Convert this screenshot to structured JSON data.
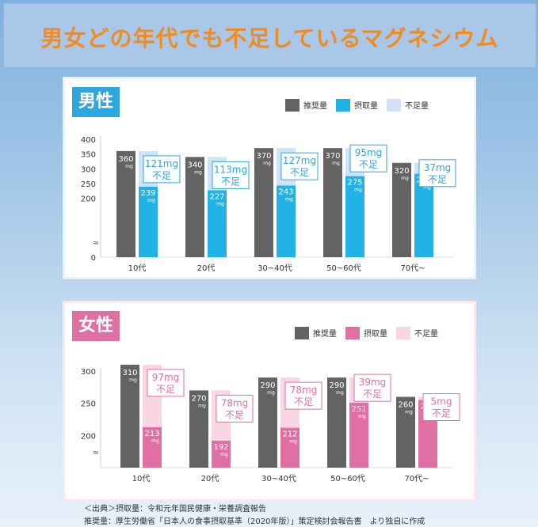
{
  "page_title": "男女どの年代でも不足しているマグネシウム",
  "colors": {
    "title_text": "#f08b1f",
    "recommended": "#636363",
    "men_intake": "#22b3e6",
    "men_shortage": "#cfe3f6",
    "men_accent": "#2ea6de",
    "women_intake": "#e06fa3",
    "women_shortage": "#f9d6e4",
    "women_accent": "#e06fa3"
  },
  "chart_data": [
    {
      "type": "bar",
      "title": "男性",
      "categories": [
        "10代",
        "20代",
        "30~40代",
        "50~60代",
        "70代~"
      ],
      "legend": [
        "推奨量",
        "摂取量",
        "不足量"
      ],
      "ylim": [
        0,
        400
      ],
      "yticks": [
        "400",
        "350",
        "300",
        "250",
        "200",
        "0"
      ],
      "axis_break": "≈",
      "unit": "mg",
      "series": [
        {
          "name": "推奨量",
          "values": [
            360,
            340,
            370,
            370,
            320
          ]
        },
        {
          "name": "摂取量",
          "values": [
            239,
            227,
            243,
            275,
            283
          ]
        },
        {
          "name": "不足量",
          "values": [
            121,
            113,
            127,
            95,
            37
          ]
        }
      ],
      "shortage_labels": [
        "121mg\n不足",
        "113mg\n不足",
        "127mg\n不足",
        "95mg\n不足",
        "37mg\n不足"
      ]
    },
    {
      "type": "bar",
      "title": "女性",
      "categories": [
        "10代",
        "20代",
        "30~40代",
        "50~60代",
        "70代~"
      ],
      "legend": [
        "推奨量",
        "摂取量",
        "不足量"
      ],
      "ylim": [
        150,
        300
      ],
      "yticks": [
        "300",
        "250",
        "200"
      ],
      "axis_break": "≈",
      "unit": "mg",
      "series": [
        {
          "name": "推奨量",
          "values": [
            310,
            270,
            290,
            290,
            260
          ]
        },
        {
          "name": "摂取量",
          "values": [
            213,
            192,
            212,
            251,
            255
          ]
        },
        {
          "name": "不足量",
          "values": [
            97,
            78,
            78,
            39,
            5
          ]
        }
      ],
      "shortage_labels": [
        "97mg\n不足",
        "78mg\n不足",
        "78mg\n不足",
        "39mg\n不足",
        "5mg\n不足"
      ]
    }
  ],
  "source": {
    "line1": "＜出典＞摂取量：令和元年国民健康・栄養調査報告",
    "line2": "推奨量：厚生労働省「日本人の食事摂取基準（2020年版）」策定検討会報告書　より独自に作成"
  }
}
